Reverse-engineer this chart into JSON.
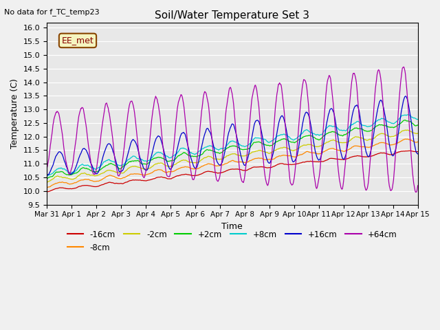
{
  "title": "Soil/Water Temperature Set 3",
  "no_data_label": "No data for f_TC_temp23",
  "ee_met_label": "EE_met",
  "xlabel": "Time",
  "ylabel": "Temperature (C)",
  "ylim": [
    9.5,
    16.2
  ],
  "series_colors": {
    "-16cm": "#cc0000",
    "-8cm": "#ff8800",
    "-2cm": "#cccc00",
    "+2cm": "#00cc00",
    "+8cm": "#00cccc",
    "+16cm": "#0000cc",
    "+64cm": "#aa00aa"
  },
  "x_tick_labels": [
    "Mar 31",
    "Apr 1",
    "Apr 2",
    "Apr 3",
    "Apr 4",
    "Apr 5",
    "Apr 6",
    "Apr 7",
    "Apr 8",
    "Apr 9",
    "Apr 10",
    "Apr 11",
    "Apr 12",
    "Apr 13",
    "Apr 14",
    "Apr 15"
  ],
  "n_days": 15,
  "points_per_day": 48,
  "bg_color": "#e8e8e8",
  "fig_bg_color": "#f0f0f0"
}
